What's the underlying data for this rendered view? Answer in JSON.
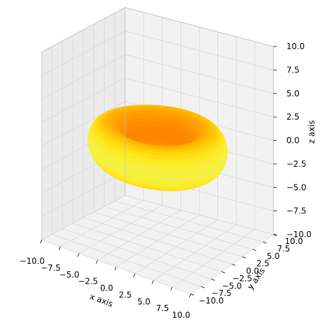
{
  "chart_data": {
    "type": "surface3d",
    "surface": "torus",
    "major_radius": 6,
    "minor_radius": 2.2,
    "colormap": "Wistia",
    "colors": [
      "#e4ff7a",
      "#ffe81a",
      "#ffbd00",
      "#ffa000",
      "#fc7f00"
    ],
    "xlim": [
      -10,
      10
    ],
    "ylim": [
      -10,
      10
    ],
    "zlim": [
      -10,
      10
    ],
    "ticks": [
      -10.0,
      -7.5,
      -5.0,
      -2.5,
      0.0,
      2.5,
      5.0,
      7.5,
      10.0
    ],
    "tick_labels": [
      "−10.0",
      "−7.5",
      "−5.0",
      "−2.5",
      "0.0",
      "2.5",
      "5.0",
      "7.5",
      "10.0"
    ],
    "xlabel": "x axis",
    "ylabel": "y axis",
    "zlabel": "z axis",
    "grid": true
  }
}
